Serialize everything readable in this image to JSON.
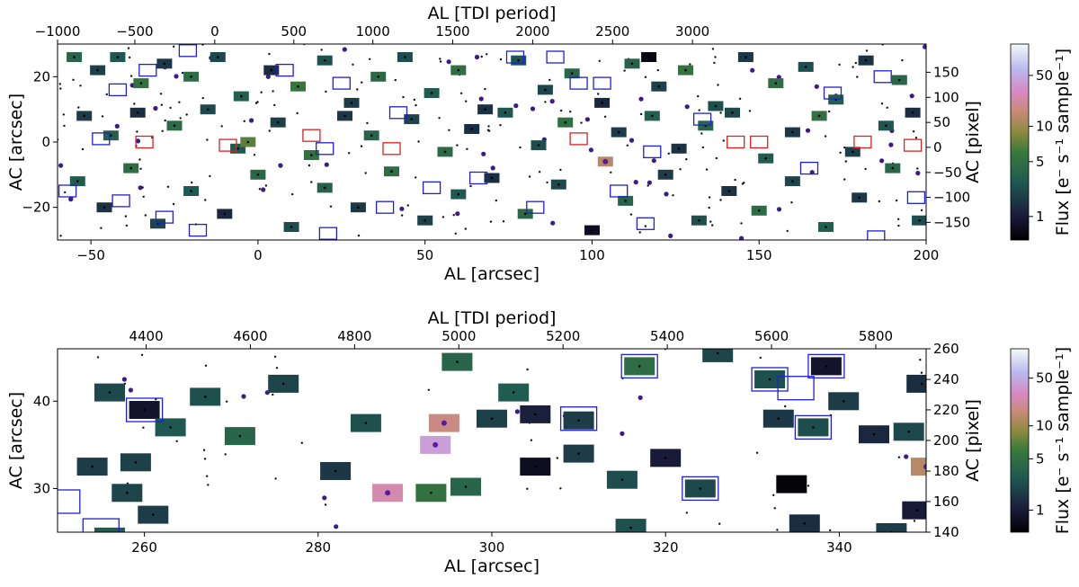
{
  "chart_data": [
    {
      "type": "scatter",
      "title": "",
      "xlabel": "AL [arcsec]",
      "ylabel": "AC [arcsec]",
      "top_xlabel": "AL [TDI period]",
      "right_ylabel": "AC [pixel]",
      "xlim": [
        -60,
        200
      ],
      "ylim": [
        -30,
        30
      ],
      "x_ticks": [
        -50,
        0,
        50,
        100,
        150,
        200
      ],
      "y_ticks": [
        -20,
        0,
        20
      ],
      "top_ticks": [
        -1000,
        -500,
        0,
        500,
        1000,
        1500,
        2000,
        2500,
        3000
      ],
      "right_ticks": [
        -150,
        -100,
        -50,
        0,
        50,
        100,
        150
      ],
      "colorbar": {
        "label": "Flux [e⁻ s⁻¹ sample⁻¹]",
        "ticks": [
          1,
          5,
          10,
          50
        ],
        "range": [
          0.5,
          80
        ]
      },
      "series": [
        {
          "name": "windows",
          "points": [
            {
              "x": -55,
              "y": 26,
              "f": 3.0
            },
            {
              "x": -48,
              "y": 22,
              "f": 1.6
            },
            {
              "x": -42,
              "y": 26,
              "f": 2.2
            },
            {
              "x": -35,
              "y": 18,
              "f": 4.0
            },
            {
              "x": -28,
              "y": 24,
              "f": 1.4
            },
            {
              "x": -20,
              "y": 20,
              "f": 3.5
            },
            {
              "x": -12,
              "y": 26,
              "f": 1.8
            },
            {
              "x": -5,
              "y": 14,
              "f": 2.6
            },
            {
              "x": 4,
              "y": 22,
              "f": 1.2
            },
            {
              "x": 12,
              "y": 17,
              "f": 4.5
            },
            {
              "x": 20,
              "y": 25,
              "f": 2.0
            },
            {
              "x": 28,
              "y": 12,
              "f": 1.5
            },
            {
              "x": 36,
              "y": 20,
              "f": 3.2
            },
            {
              "x": 44,
              "y": 26,
              "f": 1.9
            },
            {
              "x": 52,
              "y": 15,
              "f": 2.4
            },
            {
              "x": 60,
              "y": 22,
              "f": 3.8
            },
            {
              "x": 68,
              "y": 10,
              "f": 1.3
            },
            {
              "x": 78,
              "y": 25,
              "f": 2.1
            },
            {
              "x": 86,
              "y": 16,
              "f": 1.7
            },
            {
              "x": 94,
              "y": 21,
              "f": 3.0
            },
            {
              "x": 103,
              "y": 12,
              "f": 1.1
            },
            {
              "x": 112,
              "y": 24,
              "f": 2.8
            },
            {
              "x": 120,
              "y": 17,
              "f": 1.6
            },
            {
              "x": 128,
              "y": 22,
              "f": 4.2
            },
            {
              "x": 137,
              "y": 11,
              "f": 2.0
            },
            {
              "x": 146,
              "y": 26,
              "f": 1.4
            },
            {
              "x": 155,
              "y": 18,
              "f": 3.6
            },
            {
              "x": 164,
              "y": 23,
              "f": 1.9
            },
            {
              "x": 173,
              "y": 13,
              "f": 2.5
            },
            {
              "x": 182,
              "y": 25,
              "f": 1.3
            },
            {
              "x": 192,
              "y": 19,
              "f": 3.1
            },
            {
              "x": -52,
              "y": 8,
              "f": 1.5
            },
            {
              "x": -44,
              "y": 2,
              "f": 2.7
            },
            {
              "x": -36,
              "y": 9,
              "f": 1.2
            },
            {
              "x": -25,
              "y": 5,
              "f": 3.4
            },
            {
              "x": -15,
              "y": 10,
              "f": 1.8
            },
            {
              "x": -6,
              "y": -2,
              "f": 2.3
            },
            {
              "x": 6,
              "y": 6,
              "f": 1.6
            },
            {
              "x": 16,
              "y": -4,
              "f": 4.0
            },
            {
              "x": 26,
              "y": 8,
              "f": 1.4
            },
            {
              "x": 34,
              "y": 2,
              "f": 2.9
            },
            {
              "x": 46,
              "y": 7,
              "f": 1.7
            },
            {
              "x": 56,
              "y": -3,
              "f": 3.3
            },
            {
              "x": 64,
              "y": 4,
              "f": 1.2
            },
            {
              "x": 74,
              "y": 9,
              "f": 2.2
            },
            {
              "x": 84,
              "y": -1,
              "f": 1.9
            },
            {
              "x": 92,
              "y": 6,
              "f": 3.7
            },
            {
              "x": 108,
              "y": 3,
              "f": 1.5
            },
            {
              "x": 118,
              "y": 8,
              "f": 2.6
            },
            {
              "x": 126,
              "y": -2,
              "f": 1.3
            },
            {
              "x": 134,
              "y": 5,
              "f": 3.0
            },
            {
              "x": 142,
              "y": 9,
              "f": 1.8
            },
            {
              "x": 152,
              "y": -5,
              "f": 2.4
            },
            {
              "x": 160,
              "y": 3,
              "f": 1.4
            },
            {
              "x": 168,
              "y": 8,
              "f": 3.9
            },
            {
              "x": 178,
              "y": -3,
              "f": 1.6
            },
            {
              "x": 188,
              "y": 5,
              "f": 2.1
            },
            {
              "x": 196,
              "y": 9,
              "f": 1.2
            },
            {
              "x": -54,
              "y": -12,
              "f": 2.5
            },
            {
              "x": -46,
              "y": -20,
              "f": 1.3
            },
            {
              "x": -38,
              "y": -8,
              "f": 3.6
            },
            {
              "x": -30,
              "y": -25,
              "f": 1.7
            },
            {
              "x": -20,
              "y": -15,
              "f": 2.2
            },
            {
              "x": -10,
              "y": -22,
              "f": 1.1
            },
            {
              "x": 0,
              "y": -10,
              "f": 3.1
            },
            {
              "x": 10,
              "y": -26,
              "f": 1.9
            },
            {
              "x": 20,
              "y": -14,
              "f": 2.7
            },
            {
              "x": 30,
              "y": -20,
              "f": 1.4
            },
            {
              "x": 40,
              "y": -9,
              "f": 3.5
            },
            {
              "x": 50,
              "y": -24,
              "f": 1.6
            },
            {
              "x": 60,
              "y": -16,
              "f": 2.3
            },
            {
              "x": 70,
              "y": -11,
              "f": 1.2
            },
            {
              "x": 80,
              "y": -22,
              "f": 3.2
            },
            {
              "x": 90,
              "y": -13,
              "f": 1.8
            },
            {
              "x": 100,
              "y": -27,
              "f": 0.7
            },
            {
              "x": 110,
              "y": -18,
              "f": 2.9
            },
            {
              "x": 122,
              "y": -10,
              "f": 1.5
            },
            {
              "x": 132,
              "y": -24,
              "f": 2.0
            },
            {
              "x": 141,
              "y": -15,
              "f": 1.3
            },
            {
              "x": 150,
              "y": -21,
              "f": 3.4
            },
            {
              "x": 160,
              "y": -12,
              "f": 1.7
            },
            {
              "x": 170,
              "y": -26,
              "f": 2.6
            },
            {
              "x": 180,
              "y": -17,
              "f": 1.4
            },
            {
              "x": 190,
              "y": -8,
              "f": 3.0
            },
            {
              "x": 198,
              "y": -24,
              "f": 1.9
            },
            {
              "x": -3,
              "y": 0,
              "f": 6.0
            },
            {
              "x": 104,
              "y": -6,
              "f": 12.0
            },
            {
              "x": 117,
              "y": 26,
              "f": 0.6
            }
          ]
        },
        {
          "name": "blue-boxed",
          "points": [
            {
              "x": -42,
              "y": 16
            },
            {
              "x": -33,
              "y": 22
            },
            {
              "x": -21,
              "y": 28
            },
            {
              "x": 8,
              "y": 22
            },
            {
              "x": 25,
              "y": 18
            },
            {
              "x": 42,
              "y": 9
            },
            {
              "x": 77,
              "y": 26
            },
            {
              "x": 89,
              "y": 26
            },
            {
              "x": 96,
              "y": 18
            },
            {
              "x": 103,
              "y": 18
            },
            {
              "x": 133,
              "y": 7
            },
            {
              "x": 172,
              "y": 15
            },
            {
              "x": 187,
              "y": 20
            },
            {
              "x": -57,
              "y": -15
            },
            {
              "x": -41,
              "y": -18
            },
            {
              "x": -28,
              "y": -23
            },
            {
              "x": -18,
              "y": -27
            },
            {
              "x": 21,
              "y": -28
            },
            {
              "x": 38,
              "y": -20
            },
            {
              "x": 52,
              "y": -14
            },
            {
              "x": 66,
              "y": -11
            },
            {
              "x": 83,
              "y": -20
            },
            {
              "x": 108,
              "y": -15
            },
            {
              "x": 116,
              "y": -25
            },
            {
              "x": 165,
              "y": -8
            },
            {
              "x": 185,
              "y": -29
            },
            {
              "x": 197,
              "y": -17
            },
            {
              "x": -47,
              "y": 1
            },
            {
              "x": 20,
              "y": -2
            },
            {
              "x": 118,
              "y": -3
            }
          ]
        },
        {
          "name": "red-boxed",
          "points": [
            {
              "x": -34,
              "y": 0
            },
            {
              "x": -9,
              "y": -1
            },
            {
              "x": 16,
              "y": 2
            },
            {
              "x": 40,
              "y": -2
            },
            {
              "x": 96,
              "y": 1
            },
            {
              "x": 143,
              "y": 0
            },
            {
              "x": 150,
              "y": 0
            },
            {
              "x": 181,
              "y": 0
            },
            {
              "x": 196,
              "y": -1
            }
          ]
        }
      ]
    },
    {
      "type": "scatter",
      "title": "",
      "xlabel": "AL [arcsec]",
      "ylabel": "AC [arcsec]",
      "top_xlabel": "AL [TDI period]",
      "right_ylabel": "AC [pixel]",
      "xlim": [
        250,
        350
      ],
      "ylim": [
        25,
        46
      ],
      "x_ticks": [
        260,
        280,
        300,
        320,
        340
      ],
      "y_ticks": [
        30,
        40
      ],
      "top_ticks": [
        4400,
        4600,
        4800,
        5000,
        5200,
        5400,
        5600,
        5800
      ],
      "right_ticks": [
        140,
        160,
        180,
        200,
        220,
        240,
        260
      ],
      "colorbar": {
        "label": "Flux [e⁻ s⁻¹ sample⁻¹]",
        "ticks": [
          1,
          5,
          10,
          50
        ],
        "range": [
          0.5,
          80
        ]
      },
      "series": [
        {
          "name": "windows",
          "points": [
            {
              "x": 256,
              "y": 41,
              "f": 1.8
            },
            {
              "x": 260,
              "y": 39,
              "f": 0.8
            },
            {
              "x": 267,
              "y": 40.5,
              "f": 2.0
            },
            {
              "x": 263,
              "y": 37,
              "f": 2.2
            },
            {
              "x": 276,
              "y": 42,
              "f": 1.7
            },
            {
              "x": 271,
              "y": 36,
              "f": 3.0
            },
            {
              "x": 254,
              "y": 32.5,
              "f": 1.5
            },
            {
              "x": 259,
              "y": 33,
              "f": 1.6
            },
            {
              "x": 258,
              "y": 29.5,
              "f": 1.7
            },
            {
              "x": 261,
              "y": 27,
              "f": 1.5
            },
            {
              "x": 256,
              "y": 24.5,
              "f": 2.4
            },
            {
              "x": 282,
              "y": 32,
              "f": 1.4
            },
            {
              "x": 285.5,
              "y": 37.5,
              "f": 2.0
            },
            {
              "x": 288,
              "y": 29.5,
              "f": 20.0
            },
            {
              "x": 293,
              "y": 29.5,
              "f": 4.0
            },
            {
              "x": 297,
              "y": 30.2,
              "f": 3.0
            },
            {
              "x": 293.5,
              "y": 35,
              "f": 30.0
            },
            {
              "x": 294.5,
              "y": 37.5,
              "f": 15.0
            },
            {
              "x": 296,
              "y": 44.5,
              "f": 3.0
            },
            {
              "x": 300,
              "y": 38,
              "f": 1.6
            },
            {
              "x": 302.5,
              "y": 41,
              "f": 2.4
            },
            {
              "x": 305,
              "y": 38.5,
              "f": 1.0
            },
            {
              "x": 305,
              "y": 32.5,
              "f": 0.7
            },
            {
              "x": 310,
              "y": 34,
              "f": 1.5
            },
            {
              "x": 315,
              "y": 31,
              "f": 1.9
            },
            {
              "x": 316,
              "y": 25.5,
              "f": 2.0
            },
            {
              "x": 317,
              "y": 44,
              "f": 3.5
            },
            {
              "x": 320,
              "y": 33.5,
              "f": 0.9
            },
            {
              "x": 324,
              "y": 30,
              "f": 1.8
            },
            {
              "x": 334.5,
              "y": 30.5,
              "f": 0.55
            },
            {
              "x": 333,
              "y": 38,
              "f": 1.4
            },
            {
              "x": 332,
              "y": 42.5,
              "f": 2.0
            },
            {
              "x": 336,
              "y": 26,
              "f": 1.2
            },
            {
              "x": 337,
              "y": 37,
              "f": 1.9
            },
            {
              "x": 340.5,
              "y": 40,
              "f": 1.5
            },
            {
              "x": 344,
              "y": 36.2,
              "f": 1.1
            },
            {
              "x": 348,
              "y": 36.5,
              "f": 1.8
            },
            {
              "x": 349.5,
              "y": 42,
              "f": 1.2
            },
            {
              "x": 350,
              "y": 32.5,
              "f": 12.0
            },
            {
              "x": 349,
              "y": 27.5,
              "f": 0.9
            },
            {
              "x": 338.5,
              "y": 44,
              "f": 0.8
            },
            {
              "x": 346,
              "y": 25,
              "f": 1.5
            },
            {
              "x": 310,
              "y": 37.8,
              "f": 1.5
            },
            {
              "x": 326,
              "y": 45.5,
              "f": 1.7
            }
          ]
        },
        {
          "name": "blue-boxed",
          "points": [
            {
              "x": 260,
              "y": 39
            },
            {
              "x": 310,
              "y": 38
            },
            {
              "x": 317,
              "y": 44
            },
            {
              "x": 324,
              "y": 30
            },
            {
              "x": 332,
              "y": 42.5
            },
            {
              "x": 335,
              "y": 41.5
            },
            {
              "x": 338.5,
              "y": 44
            },
            {
              "x": 337,
              "y": 37
            },
            {
              "x": 250.5,
              "y": 28.5
            },
            {
              "x": 255,
              "y": 25.2
            }
          ]
        }
      ]
    }
  ]
}
